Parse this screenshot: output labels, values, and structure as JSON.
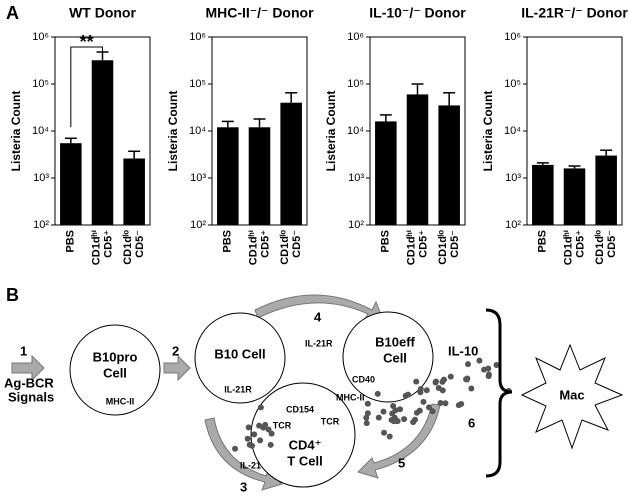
{
  "panel_labels": [
    "A",
    "B"
  ],
  "chart_data": [
    {
      "type": "bar",
      "title": "WT Donor",
      "y_label": "Listeria Count",
      "categories": [
        [
          "PBS"
        ],
        [
          "CD1dʰⁱ",
          "CD5⁺"
        ],
        [
          "CD1dˡᵒ",
          "CD5⁻"
        ]
      ],
      "values": [
        5500,
        320000,
        2600
      ],
      "errors": [
        1500,
        160000,
        1100
      ],
      "annotation": "**",
      "color": "#000000",
      "log_scale": true,
      "ylim": [
        100,
        1000000
      ],
      "yticks": [
        {
          "value": 100,
          "label": "10²"
        },
        {
          "value": 1000,
          "label": "10³"
        },
        {
          "value": 10000,
          "label": "10⁴"
        },
        {
          "value": 100000,
          "label": "10⁵"
        },
        {
          "value": 1000000,
          "label": "10⁶"
        }
      ]
    },
    {
      "type": "bar",
      "title": "MHC-II⁻/⁻ Donor",
      "y_label": "Listeria Count",
      "categories": [
        [
          "PBS"
        ],
        [
          "CD1dʰⁱ",
          "CD5⁺"
        ],
        [
          "CD1dˡᵒ",
          "CD5⁻"
        ]
      ],
      "values": [
        12000,
        12000,
        40000
      ],
      "errors": [
        4000,
        6000,
        25000
      ],
      "color": "#000000",
      "log_scale": true,
      "ylim": [
        100,
        1000000
      ],
      "yticks": [
        {
          "value": 100,
          "label": "10²"
        },
        {
          "value": 1000,
          "label": "10³"
        },
        {
          "value": 10000,
          "label": "10⁴"
        },
        {
          "value": 100000,
          "label": "10⁵"
        },
        {
          "value": 1000000,
          "label": "10⁶"
        }
      ]
    },
    {
      "type": "bar",
      "title": "IL-10⁻/⁻ Donor",
      "y_label": "Listeria Count",
      "categories": [
        [
          "PBS"
        ],
        [
          "CD1dʰⁱ",
          "CD5⁺"
        ],
        [
          "CD1dˡᵒ",
          "CD5⁻"
        ]
      ],
      "values": [
        16000,
        60000,
        35000
      ],
      "errors": [
        6000,
        40000,
        30000
      ],
      "color": "#000000",
      "log_scale": true,
      "ylim": [
        100,
        1000000
      ],
      "yticks": [
        {
          "value": 100,
          "label": "10²"
        },
        {
          "value": 1000,
          "label": "10³"
        },
        {
          "value": 10000,
          "label": "10⁴"
        },
        {
          "value": 100000,
          "label": "10⁵"
        },
        {
          "value": 1000000,
          "label": "10⁶"
        }
      ]
    },
    {
      "type": "bar",
      "title": "IL-21R⁻/⁻ Donor",
      "y_label": "Listeria Count",
      "categories": [
        [
          "PBS"
        ],
        [
          "CD1dʰⁱ",
          "CD5⁺"
        ],
        [
          "CD1dˡᵒ",
          "CD5⁻"
        ]
      ],
      "values": [
        1900,
        1600,
        3000
      ],
      "errors": [
        200,
        200,
        900
      ],
      "color": "#000000",
      "log_scale": true,
      "ylim": [
        100,
        1000000
      ],
      "yticks": [
        {
          "value": 100,
          "label": "10²"
        },
        {
          "value": 1000,
          "label": "10³"
        },
        {
          "value": 10000,
          "label": "10⁴"
        },
        {
          "value": 100000,
          "label": "10⁵"
        },
        {
          "value": 1000000,
          "label": "10⁶"
        }
      ]
    }
  ],
  "diagram": {
    "step_1": "1",
    "step_2": "2",
    "step_3": "3",
    "step_4": "4",
    "step_5": "5",
    "step_6": "6",
    "signals": [
      "Ag-BCR",
      "Signals"
    ],
    "b10pro": [
      "B10pro",
      "Cell"
    ],
    "b10pro_mhc": "MHC-II",
    "b10": "B10 Cell",
    "b10_il21r": "IL-21R",
    "b10eff": [
      "B10eff",
      "Cell"
    ],
    "b10eff_il21r": "IL-21R",
    "il10": "IL-10",
    "cd40": "CD40",
    "mhc": "MHC-II",
    "cd154": "CD154",
    "tcr_left": "TCR",
    "tcr_right": "TCR",
    "tcell": [
      "CD4⁺",
      "T Cell"
    ],
    "il21": "IL-21",
    "mac": "Mac"
  }
}
